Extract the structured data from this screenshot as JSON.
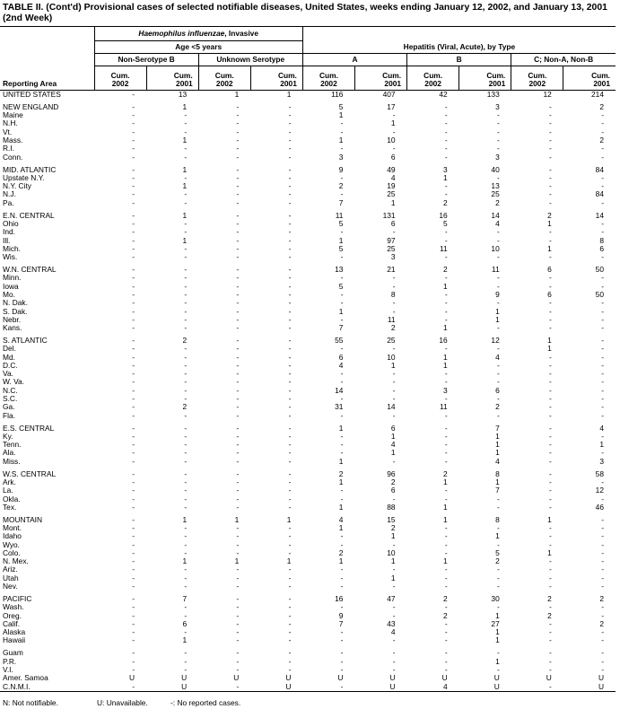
{
  "title": "TABLE II. (Cont'd) Provisional cases of selected notifiable diseases, United States, weeks ending January 12, 2002, and January 13, 2001 (2nd Week)",
  "header": {
    "hflu_italic": "Haemophilus influenzae",
    "hflu_rest": ", Invasive",
    "age": "Age <5 years",
    "hepatitis": "Hepatitis (Viral, Acute), by Type",
    "subgroups": [
      "Non-Serotype B",
      "Unknown Serotype",
      "A",
      "B",
      "C; Non-A, Non-B"
    ],
    "reporting_area": "Reporting Area",
    "cum": "Cum.",
    "years": [
      "2002",
      "2001"
    ]
  },
  "rows": [
    {
      "area": "UNITED STATES",
      "values": [
        "-",
        "13",
        "1",
        "1",
        "116",
        "407",
        "42",
        "133",
        "12",
        "214"
      ]
    },
    {
      "area": "NEW ENGLAND",
      "gap": true,
      "values": [
        "-",
        "1",
        "-",
        "-",
        "5",
        "17",
        "-",
        "3",
        "-",
        "2"
      ]
    },
    {
      "area": "Maine",
      "values": [
        "-",
        "-",
        "-",
        "-",
        "1",
        "-",
        "-",
        "-",
        "-",
        "-"
      ]
    },
    {
      "area": "N.H.",
      "values": [
        "-",
        "-",
        "-",
        "-",
        "-",
        "1",
        "-",
        "-",
        "-",
        "-"
      ]
    },
    {
      "area": "Vt.",
      "values": [
        "-",
        "-",
        "-",
        "-",
        "-",
        "-",
        "-",
        "-",
        "-",
        "-"
      ]
    },
    {
      "area": "Mass.",
      "values": [
        "-",
        "1",
        "-",
        "-",
        "1",
        "10",
        "-",
        "-",
        "-",
        "2"
      ]
    },
    {
      "area": "R.I.",
      "values": [
        "-",
        "-",
        "-",
        "-",
        "-",
        "-",
        "-",
        "-",
        "-",
        "-"
      ]
    },
    {
      "area": "Conn.",
      "values": [
        "-",
        "-",
        "-",
        "-",
        "3",
        "6",
        "-",
        "3",
        "-",
        "-"
      ]
    },
    {
      "area": "MID. ATLANTIC",
      "gap": true,
      "values": [
        "-",
        "1",
        "-",
        "-",
        "9",
        "49",
        "3",
        "40",
        "-",
        "84"
      ]
    },
    {
      "area": "Upstate N.Y.",
      "values": [
        "-",
        "-",
        "-",
        "-",
        "-",
        "4",
        "1",
        "-",
        "-",
        "-"
      ]
    },
    {
      "area": "N.Y. City",
      "values": [
        "-",
        "1",
        "-",
        "-",
        "2",
        "19",
        "-",
        "13",
        "-",
        "-"
      ]
    },
    {
      "area": "N.J.",
      "values": [
        "-",
        "-",
        "-",
        "-",
        "-",
        "25",
        "-",
        "25",
        "-",
        "84"
      ]
    },
    {
      "area": "Pa.",
      "values": [
        "-",
        "-",
        "-",
        "-",
        "7",
        "1",
        "2",
        "2",
        "-",
        "-"
      ]
    },
    {
      "area": "E.N. CENTRAL",
      "gap": true,
      "values": [
        "-",
        "1",
        "-",
        "-",
        "11",
        "131",
        "16",
        "14",
        "2",
        "14"
      ]
    },
    {
      "area": "Ohio",
      "values": [
        "-",
        "-",
        "-",
        "-",
        "5",
        "6",
        "5",
        "4",
        "1",
        "-"
      ]
    },
    {
      "area": "Ind.",
      "values": [
        "-",
        "-",
        "-",
        "-",
        "-",
        "-",
        "-",
        "-",
        "-",
        "-"
      ]
    },
    {
      "area": "Ill.",
      "values": [
        "-",
        "1",
        "-",
        "-",
        "1",
        "97",
        "-",
        "-",
        "-",
        "8"
      ]
    },
    {
      "area": "Mich.",
      "values": [
        "-",
        "-",
        "-",
        "-",
        "5",
        "25",
        "11",
        "10",
        "1",
        "6"
      ]
    },
    {
      "area": "Wis.",
      "values": [
        "-",
        "-",
        "-",
        "-",
        "-",
        "3",
        "-",
        "-",
        "-",
        "-"
      ]
    },
    {
      "area": "W.N. CENTRAL",
      "gap": true,
      "values": [
        "-",
        "-",
        "-",
        "-",
        "13",
        "21",
        "2",
        "11",
        "6",
        "50"
      ]
    },
    {
      "area": "Minn.",
      "values": [
        "-",
        "-",
        "-",
        "-",
        "-",
        "-",
        "-",
        "-",
        "-",
        "-"
      ]
    },
    {
      "area": "Iowa",
      "values": [
        "-",
        "-",
        "-",
        "-",
        "5",
        "-",
        "1",
        "-",
        "-",
        "-"
      ]
    },
    {
      "area": "Mo.",
      "values": [
        "-",
        "-",
        "-",
        "-",
        "-",
        "8",
        "-",
        "9",
        "6",
        "50"
      ]
    },
    {
      "area": "N. Dak.",
      "values": [
        "-",
        "-",
        "-",
        "-",
        "-",
        "-",
        "-",
        "-",
        "-",
        "-"
      ]
    },
    {
      "area": "S. Dak.",
      "values": [
        "-",
        "-",
        "-",
        "-",
        "1",
        "-",
        "-",
        "1",
        "-",
        "-"
      ]
    },
    {
      "area": "Nebr.",
      "values": [
        "-",
        "-",
        "-",
        "-",
        "-",
        "11",
        "-",
        "1",
        "-",
        "-"
      ]
    },
    {
      "area": "Kans.",
      "values": [
        "-",
        "-",
        "-",
        "-",
        "7",
        "2",
        "1",
        "-",
        "-",
        "-"
      ]
    },
    {
      "area": "S. ATLANTIC",
      "gap": true,
      "values": [
        "-",
        "2",
        "-",
        "-",
        "55",
        "25",
        "16",
        "12",
        "1",
        "-"
      ]
    },
    {
      "area": "Del.",
      "values": [
        "-",
        "-",
        "-",
        "-",
        "-",
        "-",
        "-",
        "-",
        "1",
        "-"
      ]
    },
    {
      "area": "Md.",
      "values": [
        "-",
        "-",
        "-",
        "-",
        "6",
        "10",
        "1",
        "4",
        "-",
        "-"
      ]
    },
    {
      "area": "D.C.",
      "values": [
        "-",
        "-",
        "-",
        "-",
        "4",
        "1",
        "1",
        "-",
        "-",
        "-"
      ]
    },
    {
      "area": "Va.",
      "values": [
        "-",
        "-",
        "-",
        "-",
        "-",
        "-",
        "-",
        "-",
        "-",
        "-"
      ]
    },
    {
      "area": "W. Va.",
      "values": [
        "-",
        "-",
        "-",
        "-",
        "-",
        "-",
        "-",
        "-",
        "-",
        "-"
      ]
    },
    {
      "area": "N.C.",
      "values": [
        "-",
        "-",
        "-",
        "-",
        "14",
        "-",
        "3",
        "6",
        "-",
        "-"
      ]
    },
    {
      "area": "S.C.",
      "values": [
        "-",
        "-",
        "-",
        "-",
        "-",
        "-",
        "-",
        "-",
        "-",
        "-"
      ]
    },
    {
      "area": "Ga.",
      "values": [
        "-",
        "2",
        "-",
        "-",
        "31",
        "14",
        "11",
        "2",
        "-",
        "-"
      ]
    },
    {
      "area": "Fla.",
      "values": [
        "-",
        "-",
        "-",
        "-",
        "-",
        "-",
        "-",
        "-",
        "-",
        "-"
      ]
    },
    {
      "area": "E.S. CENTRAL",
      "gap": true,
      "values": [
        "-",
        "-",
        "-",
        "-",
        "1",
        "6",
        "-",
        "7",
        "-",
        "4"
      ]
    },
    {
      "area": "Ky.",
      "values": [
        "-",
        "-",
        "-",
        "-",
        "-",
        "1",
        "-",
        "1",
        "-",
        "-"
      ]
    },
    {
      "area": "Tenn.",
      "values": [
        "-",
        "-",
        "-",
        "-",
        "-",
        "4",
        "-",
        "1",
        "-",
        "1"
      ]
    },
    {
      "area": "Ala.",
      "values": [
        "-",
        "-",
        "-",
        "-",
        "-",
        "1",
        "-",
        "1",
        "-",
        "-"
      ]
    },
    {
      "area": "Miss.",
      "values": [
        "-",
        "-",
        "-",
        "-",
        "1",
        "-",
        "-",
        "4",
        "-",
        "3"
      ]
    },
    {
      "area": "W.S. CENTRAL",
      "gap": true,
      "values": [
        "-",
        "-",
        "-",
        "-",
        "2",
        "96",
        "2",
        "8",
        "-",
        "58"
      ]
    },
    {
      "area": "Ark.",
      "values": [
        "-",
        "-",
        "-",
        "-",
        "1",
        "2",
        "1",
        "1",
        "-",
        "-"
      ]
    },
    {
      "area": "La.",
      "values": [
        "-",
        "-",
        "-",
        "-",
        "-",
        "6",
        "-",
        "7",
        "-",
        "12"
      ]
    },
    {
      "area": "Okla.",
      "values": [
        "-",
        "-",
        "-",
        "-",
        "-",
        "-",
        "-",
        "-",
        "-",
        "-"
      ]
    },
    {
      "area": "Tex.",
      "values": [
        "-",
        "-",
        "-",
        "-",
        "1",
        "88",
        "1",
        "-",
        "-",
        "46"
      ]
    },
    {
      "area": "MOUNTAIN",
      "gap": true,
      "values": [
        "-",
        "1",
        "1",
        "1",
        "4",
        "15",
        "1",
        "8",
        "1",
        "-"
      ]
    },
    {
      "area": "Mont.",
      "values": [
        "-",
        "-",
        "-",
        "-",
        "1",
        "2",
        "-",
        "-",
        "-",
        "-"
      ]
    },
    {
      "area": "Idaho",
      "values": [
        "-",
        "-",
        "-",
        "-",
        "-",
        "1",
        "-",
        "1",
        "-",
        "-"
      ]
    },
    {
      "area": "Wyo.",
      "values": [
        "-",
        "-",
        "-",
        "-",
        "-",
        "-",
        "-",
        "-",
        "-",
        "-"
      ]
    },
    {
      "area": "Colo.",
      "values": [
        "-",
        "-",
        "-",
        "-",
        "2",
        "10",
        "-",
        "5",
        "1",
        "-"
      ]
    },
    {
      "area": "N. Mex.",
      "values": [
        "-",
        "1",
        "1",
        "1",
        "1",
        "1",
        "1",
        "2",
        "-",
        "-"
      ]
    },
    {
      "area": "Ariz.",
      "values": [
        "-",
        "-",
        "-",
        "-",
        "-",
        "-",
        "-",
        "-",
        "-",
        "-"
      ]
    },
    {
      "area": "Utah",
      "values": [
        "-",
        "-",
        "-",
        "-",
        "-",
        "1",
        "-",
        "-",
        "-",
        "-"
      ]
    },
    {
      "area": "Nev.",
      "values": [
        "-",
        "-",
        "-",
        "-",
        "-",
        "-",
        "-",
        "-",
        "-",
        "-"
      ]
    },
    {
      "area": "PACIFIC",
      "gap": true,
      "values": [
        "-",
        "7",
        "-",
        "-",
        "16",
        "47",
        "2",
        "30",
        "2",
        "2"
      ]
    },
    {
      "area": "Wash.",
      "values": [
        "-",
        "-",
        "-",
        "-",
        "-",
        "-",
        "-",
        "-",
        "-",
        "-"
      ]
    },
    {
      "area": "Oreg.",
      "values": [
        "-",
        "-",
        "-",
        "-",
        "9",
        "-",
        "2",
        "1",
        "2",
        "-"
      ]
    },
    {
      "area": "Calif.",
      "values": [
        "-",
        "6",
        "-",
        "-",
        "7",
        "43",
        "-",
        "27",
        "-",
        "2"
      ]
    },
    {
      "area": "Alaska",
      "values": [
        "-",
        "-",
        "-",
        "-",
        "-",
        "4",
        "-",
        "1",
        "-",
        "-"
      ]
    },
    {
      "area": "Hawaii",
      "values": [
        "-",
        "1",
        "-",
        "-",
        "-",
        "-",
        "-",
        "1",
        "-",
        "-"
      ]
    },
    {
      "area": "Guam",
      "gap": true,
      "values": [
        "-",
        "-",
        "-",
        "-",
        "-",
        "-",
        "-",
        "-",
        "-",
        "-"
      ]
    },
    {
      "area": "P.R.",
      "values": [
        "-",
        "-",
        "-",
        "-",
        "-",
        "-",
        "-",
        "1",
        "-",
        "-"
      ]
    },
    {
      "area": "V.I.",
      "values": [
        "-",
        "-",
        "-",
        "-",
        "-",
        "-",
        "-",
        "-",
        "-",
        "-"
      ]
    },
    {
      "area": "Amer. Samoa",
      "values": [
        "U",
        "U",
        "U",
        "U",
        "U",
        "U",
        "U",
        "U",
        "U",
        "U"
      ]
    },
    {
      "area": "C.N.M.I.",
      "values": [
        "-",
        "U",
        "-",
        "U",
        "-",
        "U",
        "4",
        "U",
        "-",
        "U"
      ]
    }
  ],
  "footnotes": [
    "N: Not notifiable.",
    "U: Unavailable.",
    "-: No reported cases."
  ]
}
